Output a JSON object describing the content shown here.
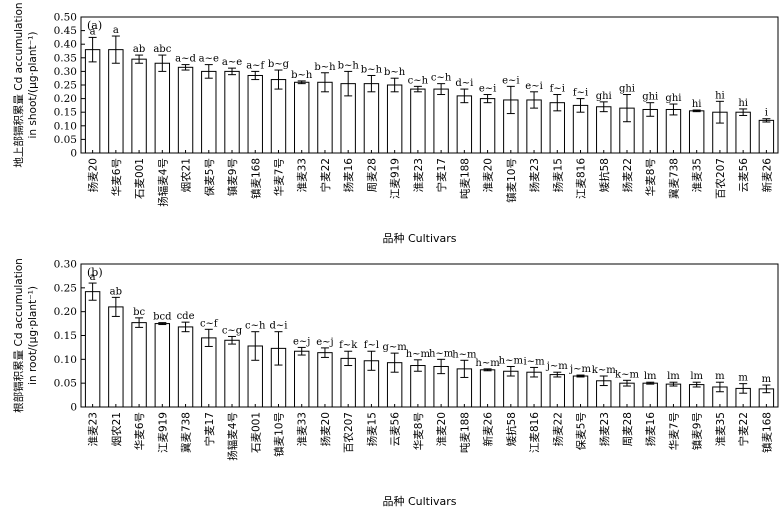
{
  "chart_data": [
    {
      "type": "bar",
      "panel_label": "(a)",
      "ylabel_line1": "地上部镉积累量 Cd accumulation",
      "ylabel_line2": "in shoot/(μg·plant⁻¹)",
      "xlabel": "品种 Cultivars",
      "ylim": [
        0,
        0.5
      ],
      "yticks": [
        "0",
        "0.05",
        "0.10",
        "0.15",
        "0.20",
        "0.25",
        "0.30",
        "0.35",
        "0.40",
        "0.45",
        "0.50"
      ],
      "categories": [
        "扬麦20",
        "华麦6号",
        "石麦001",
        "扬辐麦4号",
        "烟农21",
        "保麦5号",
        "镇麦9号",
        "镇麦168",
        "华麦7号",
        "淮麦33",
        "宁麦22",
        "扬麦16",
        "周麦28",
        "江麦919",
        "淮麦23",
        "宁麦17",
        "吨麦188",
        "淮麦20",
        "镇麦10号",
        "扬麦23",
        "扬麦15",
        "江麦816",
        "矮抗58",
        "扬麦22",
        "华麦8号",
        "冀麦738",
        "淮麦35",
        "百农207",
        "云麦56",
        "新麦26"
      ],
      "values": [
        0.38,
        0.38,
        0.345,
        0.33,
        0.315,
        0.3,
        0.3,
        0.285,
        0.27,
        0.26,
        0.26,
        0.255,
        0.255,
        0.25,
        0.235,
        0.235,
        0.21,
        0.2,
        0.195,
        0.195,
        0.185,
        0.175,
        0.17,
        0.165,
        0.16,
        0.16,
        0.155,
        0.15,
        0.15,
        0.12
      ],
      "errors": [
        0.045,
        0.05,
        0.015,
        0.03,
        0.01,
        0.025,
        0.012,
        0.015,
        0.035,
        0.005,
        0.035,
        0.045,
        0.03,
        0.025,
        0.01,
        0.02,
        0.025,
        0.015,
        0.05,
        0.03,
        0.03,
        0.025,
        0.018,
        0.05,
        0.025,
        0.02,
        0.003,
        0.04,
        0.012,
        0.006
      ],
      "letters": [
        "a",
        "a",
        "ab",
        "abc",
        "a~d",
        "a~e",
        "a~e",
        "a~f",
        "b~g",
        "b~h",
        "b~h",
        "b~h",
        "b~h",
        "b~h",
        "c~h",
        "c~h",
        "d~i",
        "e~i",
        "e~i",
        "e~i",
        "f~i",
        "f~i",
        "ghi",
        "ghi",
        "ghi",
        "ghi",
        "hi",
        "hi",
        "hi",
        "i"
      ]
    },
    {
      "type": "bar",
      "panel_label": "(b)",
      "ylabel_line1": "根部镉积累量 Cd accumulation",
      "ylabel_line2": "in root/(μg·plant⁻¹)",
      "xlabel": "品种 Cultivars",
      "ylim": [
        0,
        0.3
      ],
      "yticks": [
        "0",
        "0.05",
        "0.10",
        "0.15",
        "0.20",
        "0.25",
        "0.30"
      ],
      "categories": [
        "淮麦23",
        "烟农21",
        "华麦6号",
        "江麦919",
        "冀麦738",
        "宁麦17",
        "扬辐麦4号",
        "石麦001",
        "镇麦10号",
        "淮麦33",
        "扬麦20",
        "百农207",
        "扬麦15",
        "云麦56",
        "华麦8号",
        "淮麦20",
        "吨麦188",
        "新麦26",
        "矮抗58",
        "江麦816",
        "扬麦22",
        "保麦5号",
        "扬麦23",
        "周麦28",
        "扬麦16",
        "华麦7号",
        "镇麦9号",
        "淮麦35",
        "宁麦22",
        "镇麦168"
      ],
      "values": [
        0.242,
        0.21,
        0.177,
        0.175,
        0.168,
        0.145,
        0.14,
        0.128,
        0.123,
        0.117,
        0.114,
        0.102,
        0.097,
        0.093,
        0.087,
        0.085,
        0.08,
        0.078,
        0.075,
        0.073,
        0.068,
        0.065,
        0.055,
        0.05,
        0.05,
        0.048,
        0.047,
        0.042,
        0.039,
        0.038
      ],
      "errors": [
        0.018,
        0.02,
        0.01,
        0.002,
        0.01,
        0.018,
        0.008,
        0.03,
        0.035,
        0.008,
        0.01,
        0.015,
        0.02,
        0.02,
        0.012,
        0.015,
        0.018,
        0.002,
        0.01,
        0.01,
        0.005,
        0.002,
        0.01,
        0.006,
        0.002,
        0.004,
        0.005,
        0.01,
        0.01,
        0.008
      ],
      "letters": [
        "a",
        "ab",
        "bc",
        "bcd",
        "cde",
        "c~f",
        "c~g",
        "c~h",
        "d~i",
        "e~j",
        "e~j",
        "f~k",
        "f~l",
        "g~m",
        "h~m",
        "h~m",
        "h~m",
        "h~m",
        "h~m",
        "i~m",
        "j~m",
        "j~m",
        "k~m",
        "k~m",
        "lm",
        "lm",
        "lm",
        "m",
        "m",
        "m"
      ]
    }
  ]
}
